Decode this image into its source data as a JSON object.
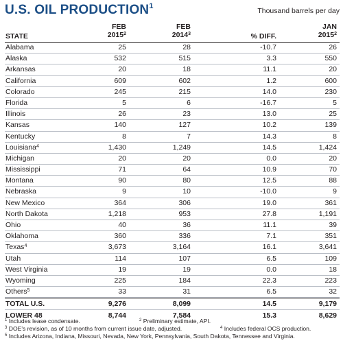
{
  "header": {
    "title": "U.S. OIL PRODUCTION",
    "title_note": "1",
    "units": "Thousand barrels per day"
  },
  "columns": {
    "state": "STATE",
    "feb2015_top": "FEB",
    "feb2015_bottom": "2015",
    "feb2015_note": "2",
    "feb2014_top": "FEB",
    "feb2014_bottom": "2014",
    "feb2014_note": "3",
    "diff": "% DIFF.",
    "jan2015_top": "JAN",
    "jan2015_bottom": "2015",
    "jan2015_note": "2"
  },
  "rows": [
    {
      "state": "Alabama",
      "note": "",
      "feb2015": "25",
      "feb2014": "28",
      "diff": "-10.7",
      "jan2015": "26"
    },
    {
      "state": "Alaska",
      "note": "",
      "feb2015": "532",
      "feb2014": "515",
      "diff": "3.3",
      "jan2015": "550"
    },
    {
      "state": "Arkansas",
      "note": "",
      "feb2015": "20",
      "feb2014": "18",
      "diff": "11.1",
      "jan2015": "20"
    },
    {
      "state": "California",
      "note": "",
      "feb2015": "609",
      "feb2014": "602",
      "diff": "1.2",
      "jan2015": "600"
    },
    {
      "state": "Colorado",
      "note": "",
      "feb2015": "245",
      "feb2014": "215",
      "diff": "14.0",
      "jan2015": "230"
    },
    {
      "state": "Florida",
      "note": "",
      "feb2015": "5",
      "feb2014": "6",
      "diff": "-16.7",
      "jan2015": "5"
    },
    {
      "state": "Illinois",
      "note": "",
      "feb2015": "26",
      "feb2014": "23",
      "diff": "13.0",
      "jan2015": "25"
    },
    {
      "state": "Kansas",
      "note": "",
      "feb2015": "140",
      "feb2014": "127",
      "diff": "10.2",
      "jan2015": "139"
    },
    {
      "state": "Kentucky",
      "note": "",
      "feb2015": "8",
      "feb2014": "7",
      "diff": "14.3",
      "jan2015": "8"
    },
    {
      "state": "Louisiana",
      "note": "4",
      "feb2015": "1,430",
      "feb2014": "1,249",
      "diff": "14.5",
      "jan2015": "1,424"
    },
    {
      "state": "Michigan",
      "note": "",
      "feb2015": "20",
      "feb2014": "20",
      "diff": "0.0",
      "jan2015": "20"
    },
    {
      "state": "Mississippi",
      "note": "",
      "feb2015": "71",
      "feb2014": "64",
      "diff": "10.9",
      "jan2015": "70"
    },
    {
      "state": "Montana",
      "note": "",
      "feb2015": "90",
      "feb2014": "80",
      "diff": "12.5",
      "jan2015": "88"
    },
    {
      "state": "Nebraska",
      "note": "",
      "feb2015": "9",
      "feb2014": "10",
      "diff": "-10.0",
      "jan2015": "9"
    },
    {
      "state": "New Mexico",
      "note": "",
      "feb2015": "364",
      "feb2014": "306",
      "diff": "19.0",
      "jan2015": "361"
    },
    {
      "state": "North Dakota",
      "note": "",
      "feb2015": "1,218",
      "feb2014": "953",
      "diff": "27.8",
      "jan2015": "1,191"
    },
    {
      "state": "Ohio",
      "note": "",
      "feb2015": "40",
      "feb2014": "36",
      "diff": "11.1",
      "jan2015": "39"
    },
    {
      "state": "Oklahoma",
      "note": "",
      "feb2015": "360",
      "feb2014": "336",
      "diff": "7.1",
      "jan2015": "351"
    },
    {
      "state": "Texas",
      "note": "4",
      "feb2015": "3,673",
      "feb2014": "3,164",
      "diff": "16.1",
      "jan2015": "3,641"
    },
    {
      "state": "Utah",
      "note": "",
      "feb2015": "114",
      "feb2014": "107",
      "diff": "6.5",
      "jan2015": "109"
    },
    {
      "state": "West Virginia",
      "note": "",
      "feb2015": "19",
      "feb2014": "19",
      "diff": "0.0",
      "jan2015": "18"
    },
    {
      "state": "Wyoming",
      "note": "",
      "feb2015": "225",
      "feb2014": "184",
      "diff": "22.3",
      "jan2015": "223"
    },
    {
      "state": "Others",
      "note": "5",
      "feb2015": "33",
      "feb2014": "31",
      "diff": "6.5",
      "jan2015": "32"
    }
  ],
  "totals": [
    {
      "label": "TOTAL U.S.",
      "feb2015": "9,276",
      "feb2014": "8,099",
      "diff": "14.5",
      "jan2015": "9,179"
    },
    {
      "label": "LOWER 48",
      "feb2015": "8,744",
      "feb2014": "7,584",
      "diff": "15.3",
      "jan2015": "8,629"
    }
  ],
  "footnotes": {
    "fn1_mark": "1",
    "fn1": "Includes lease condensate.",
    "fn2_mark": "2",
    "fn2": "Preliminary estimate, API.",
    "fn3_mark": "3",
    "fn3": "DOE's revision, as of 10 months from current issue date, adjusted.",
    "fn4_mark": "4",
    "fn4": "Includes federal OCS production.",
    "fn5_mark": "5",
    "fn5": "Includes Arizona, Indiana, Missouri, Nevada, New York, Pennsylvania, South Dakota, Tennessee and Virginia."
  },
  "colors": {
    "title": "#1b4e86",
    "text": "#231f20",
    "rule": "#b9bec6"
  }
}
